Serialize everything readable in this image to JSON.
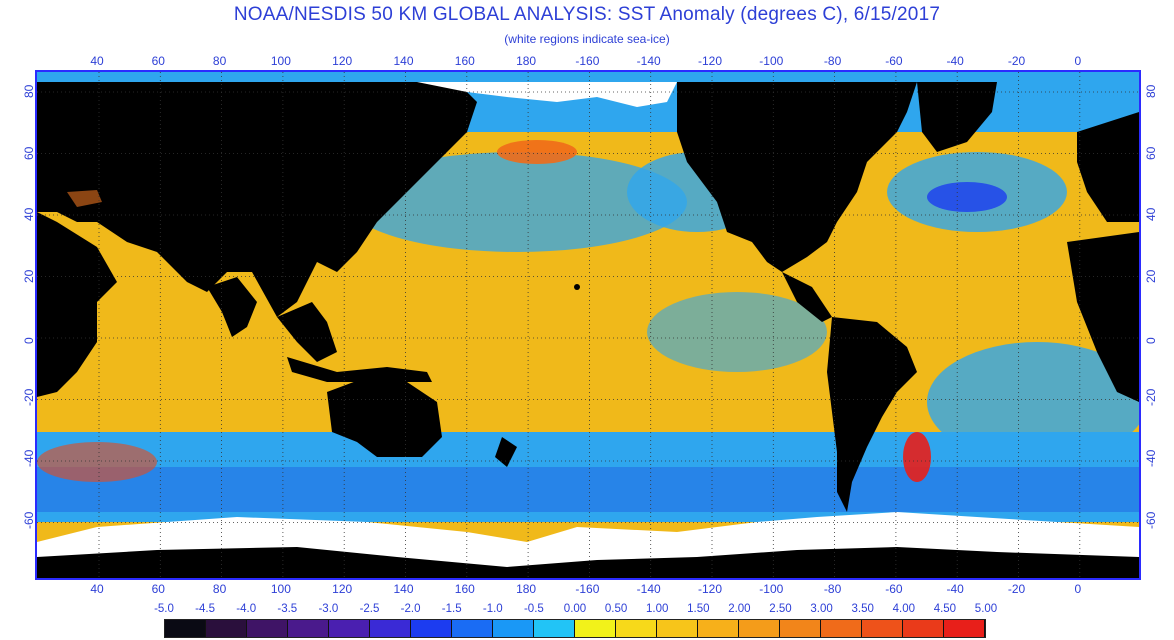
{
  "title": "NOAA/NESDIS 50 KM GLOBAL ANALYSIS: SST Anomaly (degrees C), 6/15/2017",
  "subtitle": "(white regions indicate sea-ice)",
  "map": {
    "lon_labels": [
      "40",
      "60",
      "80",
      "100",
      "120",
      "140",
      "160",
      "180",
      "-160",
      "-140",
      "-120",
      "-100",
      "-80",
      "-60",
      "-40",
      "-20",
      "0"
    ],
    "lat_labels": [
      "80",
      "60",
      "40",
      "20",
      "0",
      "-20",
      "-40",
      "-60"
    ],
    "colors": {
      "land": "#000000",
      "ice": "#ffffff",
      "warm": "#f0b91a",
      "neutral": "#f7e21a",
      "cool": "#1fa8f0",
      "cold": "#1a5ee8",
      "hot": "#e84a1a",
      "frame": "#2b2bff"
    }
  },
  "colorbar": {
    "labels": [
      "-5.0",
      "-4.5",
      "-4.0",
      "-3.5",
      "-3.0",
      "-2.5",
      "-2.0",
      "-1.5",
      "-1.0",
      "-0.5",
      "0.00",
      "0.50",
      "1.00",
      "1.50",
      "2.00",
      "2.50",
      "3.00",
      "3.50",
      "4.00",
      "4.50",
      "5.00"
    ],
    "colors": [
      "#0a0a14",
      "#2a0f3c",
      "#3f1466",
      "#4a1a8c",
      "#4a1fb0",
      "#3a2ad6",
      "#1c3cf0",
      "#1a6cf4",
      "#1a98f6",
      "#22c4f6",
      "#f2f21a",
      "#f7d91a",
      "#f7c51a",
      "#f7b01a",
      "#f49c1a",
      "#f2851a",
      "#f06b1a",
      "#ee521a",
      "#ea3a1a",
      "#e81f1a"
    ]
  }
}
